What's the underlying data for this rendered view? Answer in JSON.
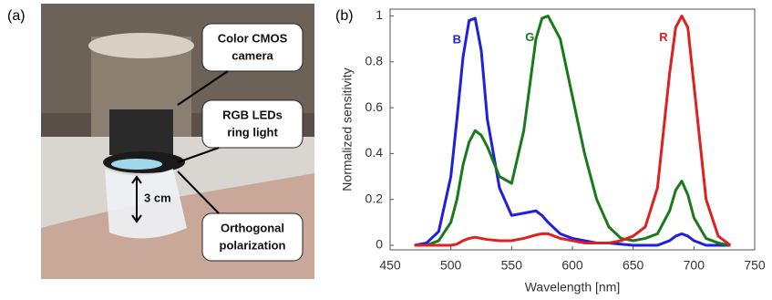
{
  "panel_a": {
    "label": "(a)",
    "callouts": [
      {
        "lines": [
          "Color CMOS",
          "camera"
        ]
      },
      {
        "lines": [
          "RGB LEDs",
          "ring light"
        ]
      },
      {
        "lines": [
          "Orthogonal",
          "polarization"
        ]
      }
    ],
    "distance": "3 cm"
  },
  "chart_data": {
    "type": "line",
    "label": "(b)",
    "xlabel": "Wavelength [nm]",
    "ylabel": "Normalized sensitivity",
    "x": [
      470,
      480,
      490,
      500,
      505,
      510,
      515,
      520,
      525,
      530,
      540,
      550,
      560,
      570,
      575,
      580,
      590,
      600,
      610,
      620,
      630,
      640,
      650,
      660,
      670,
      680,
      685,
      690,
      695,
      700,
      710,
      720,
      730
    ],
    "series": [
      {
        "name": "B",
        "color": "#1f1fe0",
        "values": [
          0,
          0.01,
          0.06,
          0.3,
          0.55,
          0.82,
          0.98,
          0.99,
          0.85,
          0.55,
          0.25,
          0.13,
          0.14,
          0.15,
          0.13,
          0.1,
          0.05,
          0.03,
          0.02,
          0.01,
          0.01,
          0.005,
          0,
          0,
          0,
          0.02,
          0.04,
          0.05,
          0.04,
          0.02,
          0,
          0,
          0
        ]
      },
      {
        "name": "G",
        "color": "#1a7a1a",
        "values": [
          0,
          0,
          0.02,
          0.1,
          0.2,
          0.35,
          0.45,
          0.5,
          0.48,
          0.43,
          0.3,
          0.27,
          0.5,
          0.9,
          0.99,
          1.0,
          0.9,
          0.65,
          0.4,
          0.2,
          0.08,
          0.03,
          0.02,
          0.03,
          0.05,
          0.15,
          0.24,
          0.28,
          0.22,
          0.12,
          0.03,
          0.01,
          0
        ]
      },
      {
        "name": "R",
        "color": "#e01f1f",
        "values": [
          0,
          0,
          0,
          0,
          0.005,
          0.02,
          0.03,
          0.035,
          0.03,
          0.025,
          0.02,
          0.02,
          0.03,
          0.045,
          0.05,
          0.05,
          0.03,
          0.02,
          0.01,
          0.01,
          0.01,
          0.02,
          0.04,
          0.08,
          0.25,
          0.75,
          0.95,
          1.0,
          0.95,
          0.7,
          0.2,
          0.04,
          0
        ]
      }
    ],
    "xlim": [
      450,
      750
    ],
    "ylim": [
      -0.02,
      1.03
    ],
    "xticks": [
      450,
      500,
      550,
      600,
      650,
      700,
      750
    ],
    "yticks": [
      0,
      0.2,
      0.4,
      0.6,
      0.8,
      1
    ]
  }
}
